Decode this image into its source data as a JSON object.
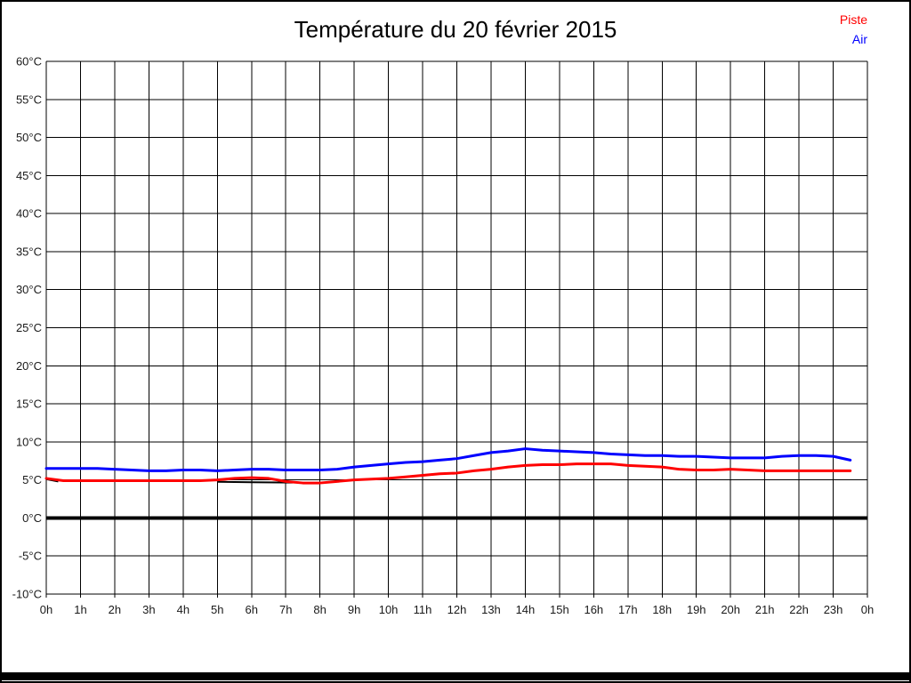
{
  "title": "Température du 20 février 2015",
  "legend": {
    "items": [
      {
        "label": "Piste",
        "color": "#ff0000"
      },
      {
        "label": "Air",
        "color": "#0000ff"
      }
    ]
  },
  "colors": {
    "grid": "#000000",
    "zero_line": "#000000",
    "footer_bar": "#000000",
    "tick_text": "#1a1a1a"
  },
  "chart_data": {
    "type": "line",
    "title": "Température du 20 février 2015",
    "xlabel": "",
    "ylabel": "",
    "xlim": [
      0,
      24
    ],
    "ylim": [
      -10,
      60
    ],
    "y_step": 5,
    "grid": true,
    "legend_position": "top-right",
    "zero_line_value": 0,
    "x_tick_labels": [
      "0h",
      "1h",
      "2h",
      "3h",
      "4h",
      "5h",
      "6h",
      "7h",
      "8h",
      "9h",
      "10h",
      "11h",
      "12h",
      "13h",
      "14h",
      "15h",
      "16h",
      "17h",
      "18h",
      "19h",
      "20h",
      "21h",
      "22h",
      "23h",
      "0h"
    ],
    "y_tick_labels": [
      "60°C",
      "55°C",
      "50°C",
      "45°C",
      "40°C",
      "35°C",
      "30°C",
      "25°C",
      "20°C",
      "15°C",
      "10°C",
      "5°C",
      "0°C",
      "-5°C",
      "-10°C"
    ],
    "x": [
      0,
      0.5,
      1,
      1.5,
      2,
      2.5,
      3,
      3.5,
      4,
      4.5,
      5,
      5.5,
      6,
      6.5,
      7,
      7.5,
      8,
      8.5,
      9,
      9.5,
      10,
      10.5,
      11,
      11.5,
      12,
      12.5,
      13,
      13.5,
      14,
      14.5,
      15,
      15.5,
      16,
      16.5,
      17,
      17.5,
      18,
      18.5,
      19,
      19.5,
      20,
      20.5,
      21,
      21.5,
      22,
      22.5,
      23,
      23.5
    ],
    "series": [
      {
        "name": "Piste",
        "color": "#ff0000",
        "values": [
          5.2,
          4.9,
          4.9,
          4.9,
          4.9,
          4.9,
          4.9,
          4.9,
          4.9,
          4.9,
          5.0,
          5.2,
          5.3,
          5.2,
          4.8,
          4.6,
          4.6,
          4.8,
          5.0,
          5.1,
          5.2,
          5.4,
          5.6,
          5.8,
          5.9,
          6.2,
          6.4,
          6.7,
          6.9,
          7.0,
          7.0,
          7.1,
          7.1,
          7.1,
          6.9,
          6.8,
          6.7,
          6.4,
          6.3,
          6.3,
          6.4,
          6.3,
          6.2,
          6.2,
          6.2,
          6.2,
          6.2,
          6.2
        ]
      },
      {
        "name": "Air",
        "color": "#0000ff",
        "values": [
          6.5,
          6.5,
          6.5,
          6.5,
          6.4,
          6.3,
          6.2,
          6.2,
          6.3,
          6.3,
          6.2,
          6.3,
          6.4,
          6.4,
          6.3,
          6.3,
          6.3,
          6.4,
          6.7,
          6.9,
          7.1,
          7.3,
          7.4,
          7.6,
          7.8,
          8.2,
          8.6,
          8.8,
          9.1,
          8.9,
          8.8,
          8.7,
          8.6,
          8.4,
          8.3,
          8.2,
          8.2,
          8.1,
          8.1,
          8.0,
          7.9,
          7.9,
          7.9,
          8.1,
          8.2,
          8.2,
          8.1,
          7.6
        ]
      }
    ],
    "unlabeled_black_trace_segments": [
      {
        "x": [
          0,
          0.35
        ],
        "values": [
          5.1,
          4.8
        ]
      },
      {
        "x": [
          5.0,
          6.0,
          7.2
        ],
        "values": [
          4.75,
          4.7,
          4.65
        ]
      }
    ]
  }
}
